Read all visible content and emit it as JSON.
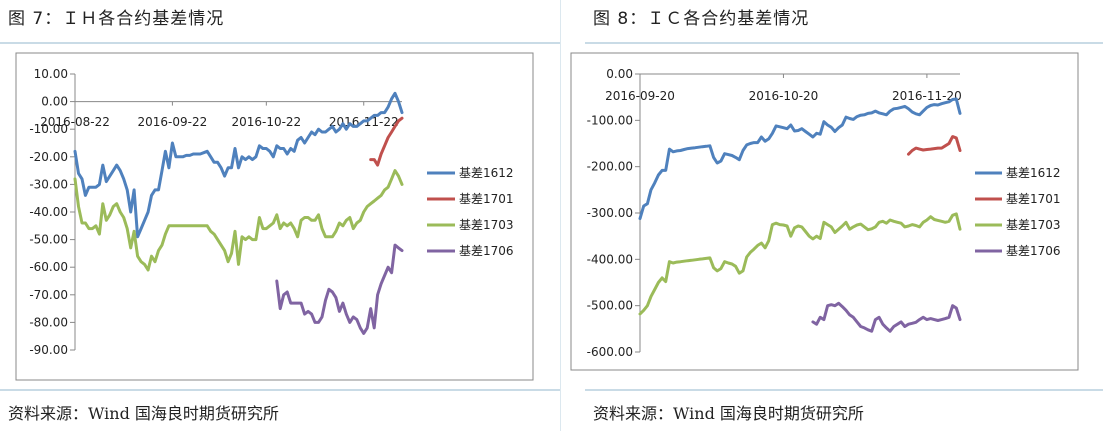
{
  "figures": [
    {
      "title": "图 7：ＩＨ各合约基差情况",
      "source": "资料来源：Wind 国海良时期货研究所"
    },
    {
      "title": "图 8：ＩＣ各合约基差情况",
      "source": "资料来源：Wind 国海良时期货研究所"
    }
  ],
  "chart_data": [
    {
      "type": "line",
      "title": "",
      "xlabel": "",
      "ylabel": "",
      "ylim": [
        -90,
        10
      ],
      "yticks": [
        10,
        0,
        -10,
        -20,
        -30,
        -40,
        -50,
        -60,
        -70,
        -80,
        -90
      ],
      "ytick_labels": [
        "10.00",
        "0.00",
        "-10.00",
        "-20.00",
        "-30.00",
        "-40.00",
        "-50.00",
        "-60.00",
        "-70.00",
        "-80.00",
        "-90.00"
      ],
      "xlim": [
        0,
        94
      ],
      "xtick_labels": [
        {
          "label": "2016-08-22",
          "x": 0
        },
        {
          "label": "2016-09-22",
          "x": 28
        },
        {
          "label": "2016-10-22",
          "x": 55
        },
        {
          "label": "2016-11-22",
          "x": 83
        }
      ],
      "grid": false,
      "legend": "right",
      "series": [
        {
          "name": "基差1612",
          "color": "#4f81bd",
          "x": [
            0,
            1,
            2,
            3,
            4,
            5,
            6,
            7,
            8,
            9,
            10,
            11,
            12,
            13,
            14,
            15,
            16,
            17,
            18,
            19,
            20,
            21,
            22,
            23,
            24,
            25,
            26,
            27,
            28,
            29,
            30,
            31,
            32,
            33,
            34,
            35,
            36,
            37,
            38,
            39,
            40,
            41,
            42,
            43,
            44,
            45,
            46,
            47,
            48,
            49,
            50,
            51,
            52,
            53,
            54,
            55,
            56,
            57,
            58,
            59,
            60,
            61,
            62,
            63,
            64,
            65,
            66,
            67,
            68,
            69,
            70,
            71,
            72,
            73,
            74,
            75,
            76,
            77,
            78,
            79,
            80,
            81,
            82,
            83,
            84,
            85,
            86,
            87,
            88,
            89,
            90,
            91,
            92,
            93,
            94
          ],
          "values": [
            -18,
            -26,
            -28,
            -34,
            -31,
            -31,
            -31,
            -30,
            -23,
            -29,
            -27,
            -25,
            -23,
            -25,
            -28,
            -32,
            -40,
            -32,
            -49,
            -46,
            -43,
            -40,
            -34,
            -32,
            -32,
            -25,
            -18,
            -24,
            -15,
            -20,
            -20,
            -20,
            -19.5,
            -19.5,
            -19,
            -19,
            -19,
            -18.5,
            -18,
            -20,
            -22,
            -22,
            -24,
            -27,
            -24,
            -24,
            -17,
            -24,
            -20,
            -21,
            -20,
            -21,
            -20,
            -16,
            -17,
            -17,
            -18,
            -20,
            -16,
            -17,
            -17,
            -19,
            -17,
            -18,
            -14,
            -13,
            -15,
            -13,
            -11,
            -12,
            -10,
            -11,
            -11,
            -10,
            -9,
            -11,
            -10,
            -8,
            -10,
            -8,
            -9,
            -9,
            -8,
            -7,
            -7,
            -6,
            -5,
            -5,
            -4,
            -4,
            -2,
            1,
            3,
            0,
            -4
          ]
        },
        {
          "name": "基差1701",
          "color": "#c0504d",
          "x": [
            85,
            86,
            87,
            88,
            89,
            90,
            91,
            92,
            93,
            94
          ],
          "values": [
            -21,
            -21,
            -23,
            -19,
            -16,
            -13,
            -11,
            -9,
            -7,
            -6
          ]
        },
        {
          "name": "基差1703",
          "color": "#9bbb59",
          "x": [
            0,
            1,
            2,
            3,
            4,
            5,
            6,
            7,
            8,
            9,
            10,
            11,
            12,
            13,
            14,
            15,
            16,
            17,
            18,
            19,
            20,
            21,
            22,
            23,
            24,
            25,
            26,
            27,
            28,
            29,
            30,
            31,
            32,
            33,
            34,
            35,
            36,
            37,
            38,
            39,
            40,
            41,
            42,
            43,
            44,
            45,
            46,
            47,
            48,
            49,
            50,
            51,
            52,
            53,
            54,
            55,
            56,
            57,
            58,
            59,
            60,
            61,
            62,
            63,
            64,
            65,
            66,
            67,
            68,
            69,
            70,
            71,
            72,
            73,
            74,
            75,
            76,
            77,
            78,
            79,
            80,
            81,
            82,
            83,
            84,
            85,
            86,
            87,
            88,
            89,
            90,
            91,
            92,
            93,
            94
          ],
          "values": [
            -28,
            -38,
            -44,
            -44,
            -46,
            -46,
            -45,
            -48,
            -37,
            -43,
            -41,
            -38,
            -37,
            -40,
            -42,
            -46,
            -53,
            -47,
            -56,
            -58,
            -59,
            -61,
            -56,
            -58,
            -54,
            -52,
            -48,
            -45,
            -45,
            -45,
            -45,
            -45,
            -45,
            -45,
            -45,
            -45,
            -45,
            -45,
            -45,
            -47,
            -48,
            -50,
            -52,
            -54,
            -58,
            -55,
            -47,
            -59,
            -49,
            -50,
            -49,
            -50,
            -50,
            -42,
            -46,
            -46,
            -45,
            -44,
            -41,
            -46,
            -44,
            -45,
            -44,
            -46,
            -49,
            -43,
            -42,
            -42,
            -43,
            -43,
            -41,
            -46,
            -49,
            -49,
            -49,
            -47,
            -44,
            -45,
            -43,
            -42,
            -46,
            -44,
            -43,
            -40,
            -38,
            -37,
            -36,
            -35,
            -34,
            -32,
            -31,
            -28,
            -25,
            -27,
            -30
          ]
        },
        {
          "name": "基差1706",
          "color": "#8064a2",
          "x": [
            58,
            59,
            60,
            61,
            62,
            63,
            64,
            65,
            66,
            67,
            68,
            69,
            70,
            71,
            72,
            73,
            74,
            75,
            76,
            77,
            78,
            79,
            80,
            81,
            82,
            83,
            84,
            85,
            86,
            87,
            88,
            89,
            90,
            91,
            92,
            93,
            94
          ],
          "values": [
            -65,
            -75,
            -70,
            -69,
            -73,
            -73,
            -73,
            -73,
            -77,
            -76,
            -77,
            -80,
            -80,
            -78,
            -72,
            -68,
            -69,
            -71,
            -76,
            -73,
            -77,
            -80,
            -78,
            -79,
            -82,
            -84,
            -82,
            -75,
            -82,
            -70,
            -66,
            -63,
            -60,
            -62,
            -52,
            -53,
            -54
          ]
        }
      ]
    },
    {
      "type": "line",
      "title": "",
      "xlabel": "",
      "ylabel": "",
      "ylim": [
        -600,
        0
      ],
      "yticks": [
        0,
        -100,
        -200,
        -300,
        -400,
        -500,
        -600
      ],
      "ytick_labels": [
        "0.00",
        "-100.00",
        "-200.00",
        "-300.00",
        "-400.00",
        "-500.00",
        "-600.00"
      ],
      "xlim": [
        0,
        87
      ],
      "xtick_labels": [
        {
          "label": "2016-09-20",
          "x": 0
        },
        {
          "label": "2016-10-20",
          "x": 39
        },
        {
          "label": "2016-11-20",
          "x": 78
        }
      ],
      "grid": false,
      "legend": "right",
      "series": [
        {
          "name": "基差1612",
          "color": "#4f81bd",
          "x": [
            0,
            1,
            2,
            3,
            4,
            5,
            6,
            7,
            8,
            9,
            10,
            11,
            12,
            13,
            14,
            15,
            16,
            17,
            18,
            19,
            20,
            21,
            22,
            23,
            24,
            25,
            26,
            27,
            28,
            29,
            30,
            31,
            32,
            33,
            34,
            35,
            36,
            37,
            38,
            39,
            40,
            41,
            42,
            43,
            44,
            45,
            46,
            47,
            48,
            49,
            50,
            51,
            52,
            53,
            54,
            55,
            56,
            57,
            58,
            59,
            60,
            61,
            62,
            63,
            64,
            65,
            66,
            67,
            68,
            69,
            70,
            71,
            72,
            73,
            74,
            75,
            76,
            77,
            78,
            79,
            80,
            81,
            82,
            83,
            84,
            85,
            86,
            87
          ],
          "values": [
            -312,
            -285,
            -280,
            -250,
            -235,
            -218,
            -208,
            -208,
            -162,
            -168,
            -166,
            -165,
            -163,
            -161,
            -160,
            -159,
            -158,
            -157,
            -156,
            -155,
            -180,
            -192,
            -188,
            -172,
            -174,
            -176,
            -180,
            -185,
            -165,
            -153,
            -150,
            -148,
            -148,
            -136,
            -145,
            -140,
            -128,
            -112,
            -114,
            -116,
            -118,
            -110,
            -123,
            -122,
            -118,
            -124,
            -130,
            -136,
            -128,
            -130,
            -103,
            -110,
            -115,
            -124,
            -116,
            -110,
            -93,
            -96,
            -98,
            -92,
            -89,
            -88,
            -85,
            -84,
            -80,
            -84,
            -86,
            -88,
            -80,
            -75,
            -74,
            -72,
            -70,
            -75,
            -82,
            -86,
            -88,
            -80,
            -72,
            -68,
            -66,
            -67,
            -64,
            -62,
            -60,
            -55,
            -54,
            -85
          ]
        },
        {
          "name": "基差1701",
          "color": "#c0504d",
          "x": [
            73,
            74,
            75,
            76,
            77,
            78,
            79,
            80,
            81,
            82,
            83,
            84,
            85,
            86,
            87
          ],
          "values": [
            -173,
            -165,
            -160,
            -162,
            -164,
            -163,
            -162,
            -161,
            -160,
            -160,
            -155,
            -150,
            -135,
            -138,
            -165
          ]
        },
        {
          "name": "基差1703",
          "color": "#9bbb59",
          "x": [
            0,
            1,
            2,
            3,
            4,
            5,
            6,
            7,
            8,
            9,
            10,
            11,
            12,
            13,
            14,
            15,
            16,
            17,
            18,
            19,
            20,
            21,
            22,
            23,
            24,
            25,
            26,
            27,
            28,
            29,
            30,
            31,
            32,
            33,
            34,
            35,
            36,
            37,
            38,
            39,
            40,
            41,
            42,
            43,
            44,
            45,
            46,
            47,
            48,
            49,
            50,
            51,
            52,
            53,
            54,
            55,
            56,
            57,
            58,
            59,
            60,
            61,
            62,
            63,
            64,
            65,
            66,
            67,
            68,
            69,
            70,
            71,
            72,
            73,
            74,
            75,
            76,
            77,
            78,
            79,
            80,
            81,
            82,
            83,
            84,
            85,
            86,
            87
          ],
          "values": [
            -518,
            -510,
            -500,
            -480,
            -465,
            -450,
            -440,
            -448,
            -405,
            -408,
            -406,
            -405,
            -404,
            -403,
            -402,
            -401,
            -400,
            -399,
            -398,
            -397,
            -418,
            -425,
            -420,
            -405,
            -408,
            -410,
            -415,
            -430,
            -425,
            -395,
            -385,
            -378,
            -370,
            -365,
            -375,
            -360,
            -325,
            -322,
            -325,
            -326,
            -328,
            -350,
            -332,
            -328,
            -330,
            -340,
            -350,
            -356,
            -350,
            -355,
            -320,
            -325,
            -330,
            -342,
            -335,
            -328,
            -320,
            -335,
            -330,
            -326,
            -324,
            -330,
            -336,
            -334,
            -330,
            -320,
            -318,
            -322,
            -315,
            -318,
            -320,
            -322,
            -330,
            -328,
            -325,
            -327,
            -330,
            -320,
            -315,
            -308,
            -314,
            -316,
            -318,
            -320,
            -318,
            -305,
            -302,
            -335
          ]
        },
        {
          "name": "基差1706",
          "color": "#8064a2",
          "x": [
            47,
            48,
            49,
            50,
            51,
            52,
            53,
            54,
            55,
            56,
            57,
            58,
            59,
            60,
            61,
            62,
            63,
            64,
            65,
            66,
            67,
            68,
            69,
            70,
            71,
            72,
            73,
            74,
            75,
            76,
            77,
            78,
            79,
            80,
            81,
            82,
            83,
            84,
            85,
            86,
            87
          ],
          "values": [
            -535,
            -540,
            -525,
            -530,
            -500,
            -498,
            -500,
            -495,
            -502,
            -510,
            -520,
            -525,
            -535,
            -545,
            -548,
            -552,
            -555,
            -530,
            -525,
            -540,
            -548,
            -555,
            -545,
            -540,
            -535,
            -545,
            -540,
            -538,
            -536,
            -530,
            -525,
            -530,
            -528,
            -530,
            -532,
            -530,
            -528,
            -525,
            -500,
            -505,
            -530
          ]
        }
      ]
    }
  ]
}
